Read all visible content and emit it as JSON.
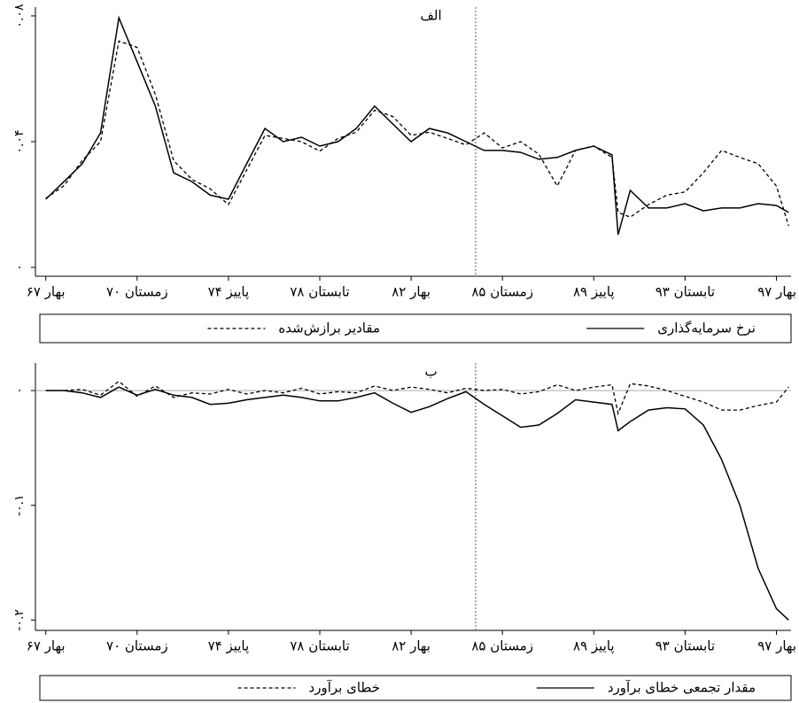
{
  "chart_data": [
    {
      "type": "line",
      "title": "الف",
      "x": [
        0,
        3,
        6,
        9,
        12,
        15,
        18,
        21,
        24,
        27,
        30,
        33,
        36,
        39,
        42,
        45,
        48,
        51,
        54,
        57,
        60,
        63,
        66,
        69,
        72,
        75,
        78,
        81,
        84,
        87,
        90,
        93,
        94,
        96,
        99,
        102,
        105,
        108,
        111,
        114,
        117,
        120,
        122
      ],
      "series": [
        {
          "name": "نرخ سرمایه‌گذاری",
          "color": "#000000",
          "style": "solid",
          "values": [
            0.0217,
            0.0273,
            0.033,
            0.0428,
            0.0794,
            0.0654,
            0.0513,
            0.0301,
            0.0273,
            0.023,
            0.0217,
            0.033,
            0.0442,
            0.04,
            0.0414,
            0.0386,
            0.04,
            0.0442,
            0.0513,
            0.0456,
            0.04,
            0.0442,
            0.0428,
            0.04,
            0.0372,
            0.0372,
            0.0366,
            0.0344,
            0.035,
            0.0372,
            0.0386,
            0.0358,
            0.0104,
            0.0245,
            0.0189,
            0.0189,
            0.0203,
            0.018,
            0.0189,
            0.0189,
            0.0203,
            0.0197,
            0.0175
          ]
        },
        {
          "name": "مقادیر برازش‌شده",
          "color": "#000000",
          "style": "dashed",
          "values": [
            0.022,
            0.026,
            0.034,
            0.04,
            0.072,
            0.07,
            0.055,
            0.034,
            0.028,
            0.025,
            0.02,
            0.031,
            0.042,
            0.041,
            0.04,
            0.037,
            0.041,
            0.043,
            0.05,
            0.048,
            0.042,
            0.043,
            0.041,
            0.039,
            0.0428,
            0.038,
            0.04,
            0.036,
            0.0259,
            0.0372,
            0.0386,
            0.035,
            0.0175,
            0.016,
            0.02,
            0.023,
            0.024,
            0.0301,
            0.0372,
            0.035,
            0.033,
            0.0259,
            0.0132
          ]
        }
      ],
      "xlim": [
        -1.7,
        122.4
      ],
      "xticks": [
        {
          "value": 0,
          "label": "بهار ۶۷"
        },
        {
          "value": 15,
          "label": "زمستان ۷۰"
        },
        {
          "value": 30,
          "label": "پاییز ۷۴"
        },
        {
          "value": 45,
          "label": "تابستان ۷۸"
        },
        {
          "value": 60,
          "label": "بهار ۸۲"
        },
        {
          "value": 75,
          "label": "زمستان ۸۵"
        },
        {
          "value": 90,
          "label": "پاییز ۸۹"
        },
        {
          "value": 105,
          "label": "تابستان ۹۳"
        },
        {
          "value": 120,
          "label": "بهار ۹۷"
        }
      ],
      "ylim": [
        -0.0028,
        0.0828
      ],
      "yticks": [
        {
          "value": 0,
          "label": "۰"
        },
        {
          "value": 0.04,
          "label": "۰.۰۴"
        },
        {
          "value": 0.08,
          "label": "۰.۰۸"
        }
      ],
      "vline": 70.6,
      "grid": false
    },
    {
      "type": "line",
      "title": "ب",
      "x": [
        0,
        3,
        6,
        9,
        12,
        15,
        18,
        21,
        24,
        27,
        30,
        33,
        36,
        39,
        42,
        45,
        48,
        51,
        54,
        57,
        60,
        63,
        66,
        69,
        72,
        75,
        78,
        81,
        84,
        87,
        90,
        93,
        94,
        96,
        99,
        102,
        105,
        108,
        111,
        114,
        117,
        120,
        122
      ],
      "series": [
        {
          "name": "مقدار تجمعی خطای برآورد",
          "color": "#000000",
          "style": "solid",
          "values": [
            0,
            0,
            -0.002,
            -0.006,
            0.003,
            -0.004,
            0.001,
            -0.004,
            -0.006,
            -0.012,
            -0.011,
            -0.008,
            -0.006,
            -0.004,
            -0.006,
            -0.009,
            -0.009,
            -0.006,
            -0.002,
            -0.011,
            -0.019,
            -0.014,
            -0.007,
            -0.001,
            -0.012,
            -0.022,
            -0.032,
            -0.03,
            -0.02,
            -0.008,
            -0.01,
            -0.012,
            -0.035,
            -0.027,
            -0.017,
            -0.015,
            -0.016,
            -0.03,
            -0.06,
            -0.1,
            -0.155,
            -0.19,
            -0.2
          ]
        },
        {
          "name": "خطای برآورد",
          "color": "#000000",
          "style": "dashed",
          "values": [
            0,
            0,
            0.001,
            -0.004,
            0.008,
            -0.005,
            0.004,
            -0.006,
            -0.002,
            -0.003,
            0.001,
            -0.003,
            0,
            -0.002,
            0.002,
            -0.003,
            -0.001,
            -0.002,
            0.004,
            0,
            0.003,
            0.001,
            -0.002,
            0.002,
            0,
            0.001,
            -0.003,
            -0.001,
            0.005,
            0,
            0.003,
            0.005,
            -0.02,
            0.006,
            0.004,
            0,
            -0.005,
            -0.01,
            -0.017,
            -0.017,
            -0.013,
            -0.01,
            0.003
          ]
        }
      ],
      "xlim": [
        -1.7,
        122.4
      ],
      "xticks": [
        {
          "value": 0,
          "label": "بهار ۶۷"
        },
        {
          "value": 15,
          "label": "زمستان ۷۰"
        },
        {
          "value": 30,
          "label": "پاییز ۷۴"
        },
        {
          "value": 45,
          "label": "تابستان ۷۸"
        },
        {
          "value": 60,
          "label": "بهار ۸۲"
        },
        {
          "value": 75,
          "label": "زمستان ۸۵"
        },
        {
          "value": 90,
          "label": "پاییز ۸۹"
        },
        {
          "value": 105,
          "label": "تابستان ۹۳"
        },
        {
          "value": 120,
          "label": "بهار ۹۷"
        }
      ],
      "ylim": [
        -0.209,
        0.024
      ],
      "yticks": [
        {
          "value": 0,
          "label": "۰"
        },
        {
          "value": -0.1,
          "label": "-۰.۱"
        },
        {
          "value": -0.2,
          "label": "-۰.۲"
        }
      ],
      "vline": 70.6,
      "hline": 0,
      "grid": false
    }
  ]
}
